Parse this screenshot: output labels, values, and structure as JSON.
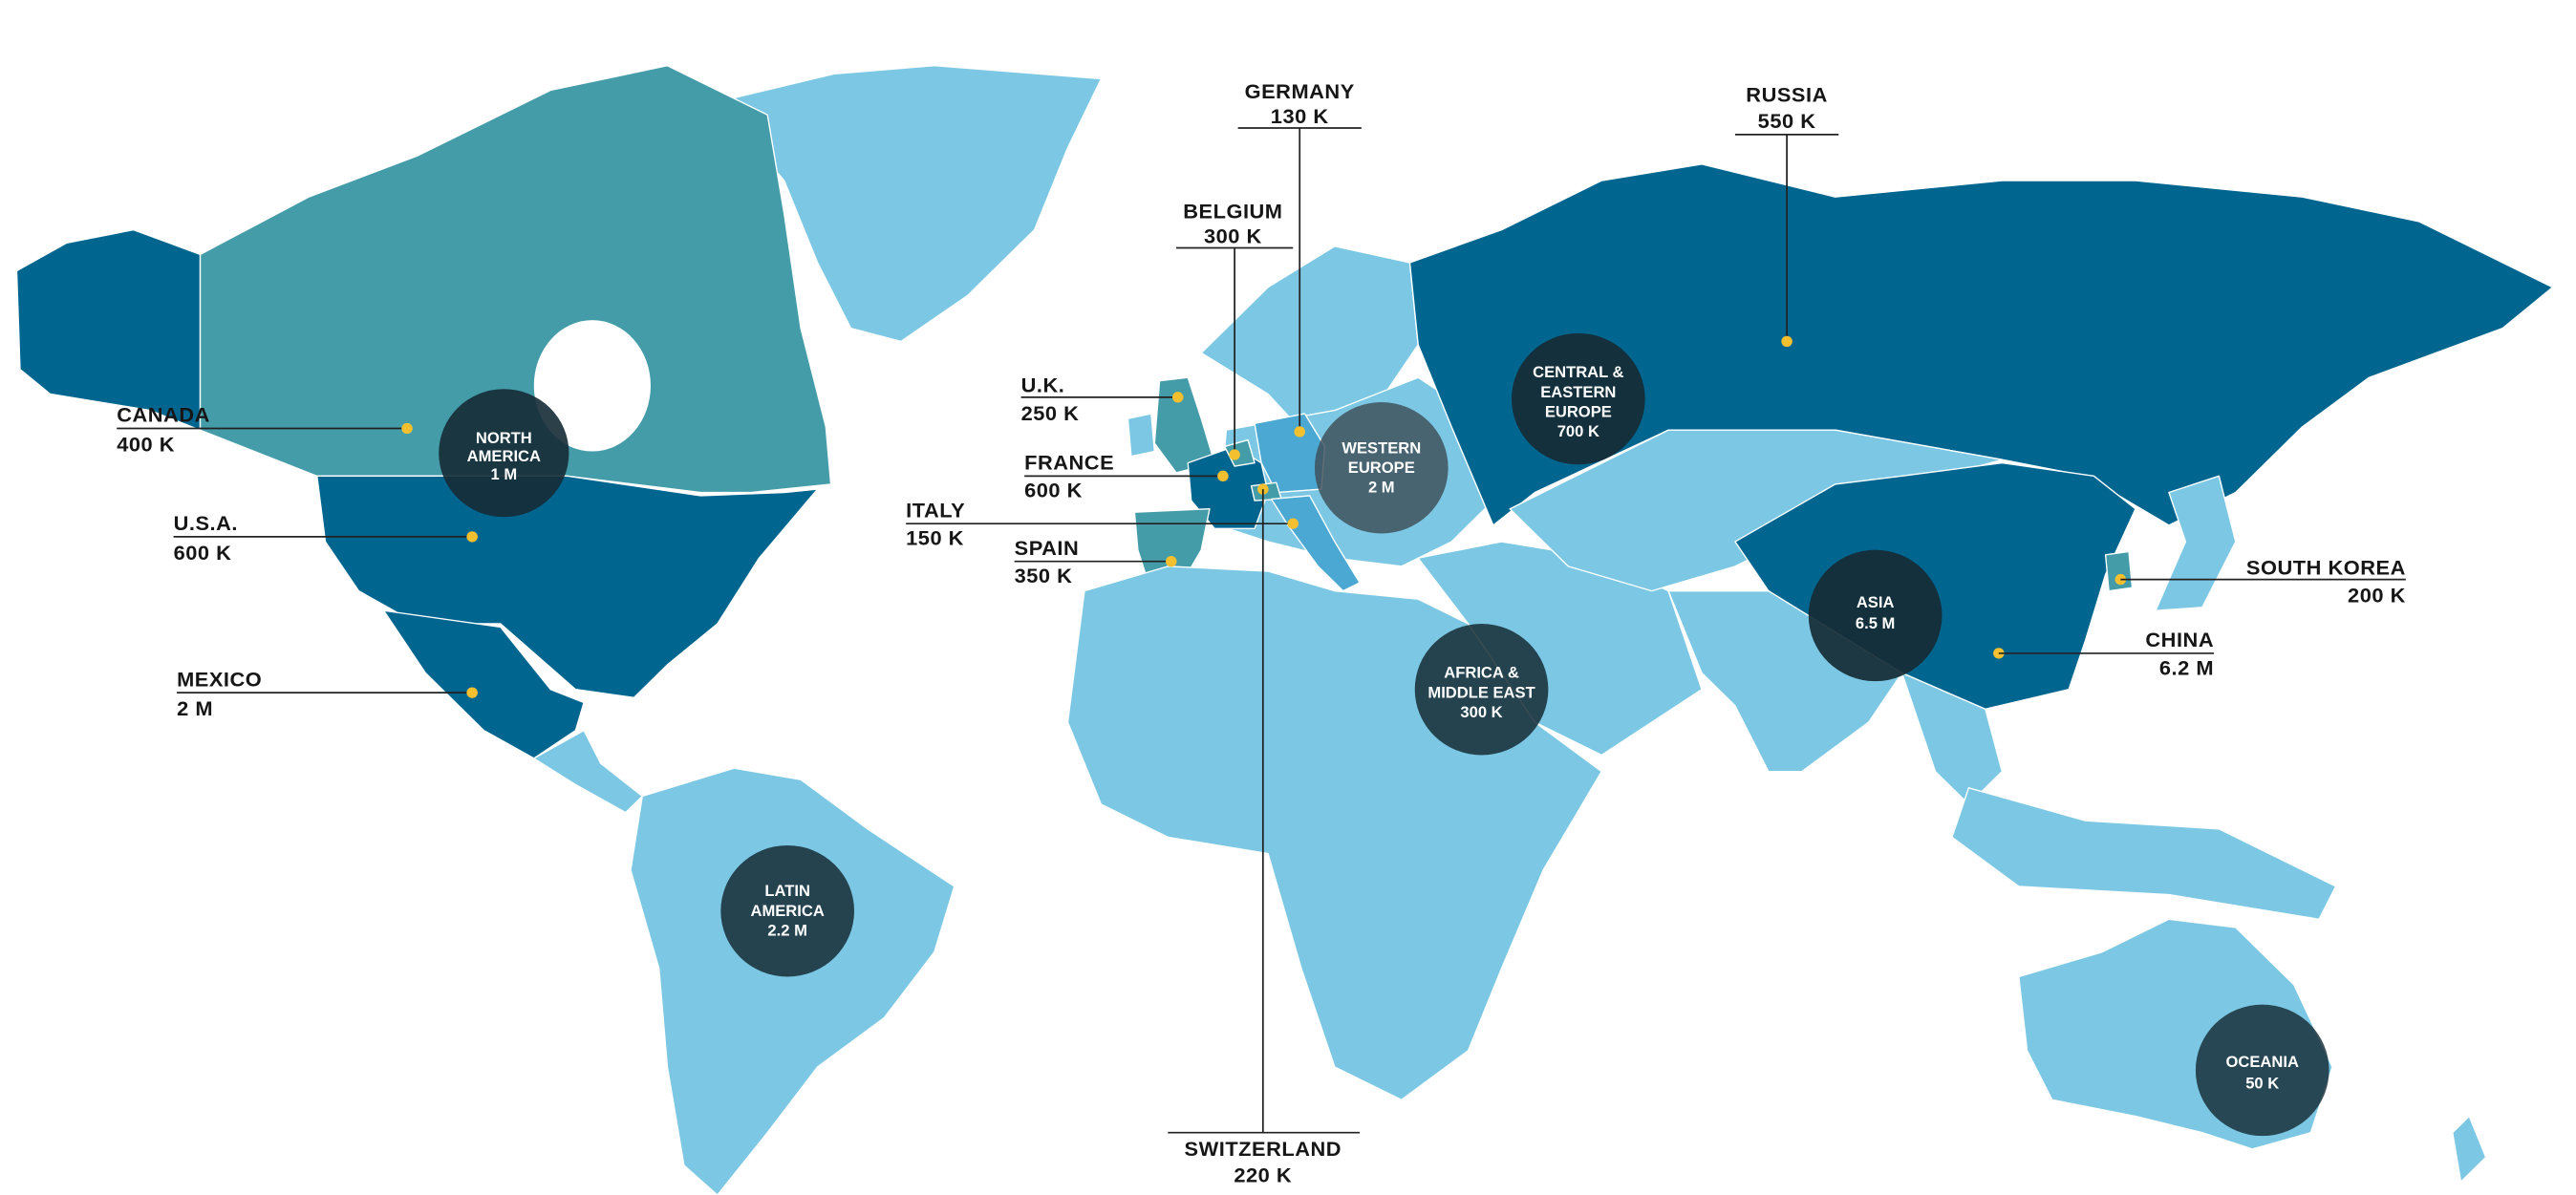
{
  "colors": {
    "land_default": "#7cc8e4",
    "highlight_dark": "#006690",
    "highlight_teal": "#449ca9",
    "highlight_medium": "#4aa8d2",
    "region_circle": "#152b35",
    "marker": "#f4c030",
    "text": "#161616"
  },
  "countries": {
    "canada": {
      "name": "CANADA",
      "value": "400 K"
    },
    "usa": {
      "name": "U.S.A.",
      "value": "600 K"
    },
    "mexico": {
      "name": "MEXICO",
      "value": "2 M"
    },
    "germany": {
      "name": "GERMANY",
      "value": "130 K"
    },
    "belgium": {
      "name": "BELGIUM",
      "value": "300 K"
    },
    "russia": {
      "name": "RUSSIA",
      "value": "550 K"
    },
    "uk": {
      "name": "U.K.",
      "value": "250 K"
    },
    "france": {
      "name": "FRANCE",
      "value": "600 K"
    },
    "italy": {
      "name": "ITALY",
      "value": "150 K"
    },
    "spain": {
      "name": "SPAIN",
      "value": "350 K"
    },
    "switzerland": {
      "name": "SWITZERLAND",
      "value": "220 K"
    },
    "south_korea": {
      "name": "SOUTH KOREA",
      "value": "200 K"
    },
    "china": {
      "name": "CHINA",
      "value": "6.2 M"
    }
  },
  "regions": {
    "north_america": {
      "lines": [
        "NORTH",
        "AMERICA",
        "1 M"
      ]
    },
    "western_europe": {
      "lines": [
        "WESTERN",
        "EUROPE",
        "2 M"
      ]
    },
    "central_eastern_europe": {
      "lines": [
        "CENTRAL &",
        "EASTERN",
        "EUROPE",
        "700 K"
      ]
    },
    "asia": {
      "lines": [
        "ASIA",
        "6.5 M"
      ]
    },
    "africa_middle_east": {
      "lines": [
        "AFRICA &",
        "MIDDLE EAST",
        "300 K"
      ]
    },
    "latin_america": {
      "lines": [
        "LATIN",
        "AMERICA",
        "2.2 M"
      ]
    },
    "oceania": {
      "lines": [
        "OCEANIA",
        "50 K"
      ]
    }
  }
}
